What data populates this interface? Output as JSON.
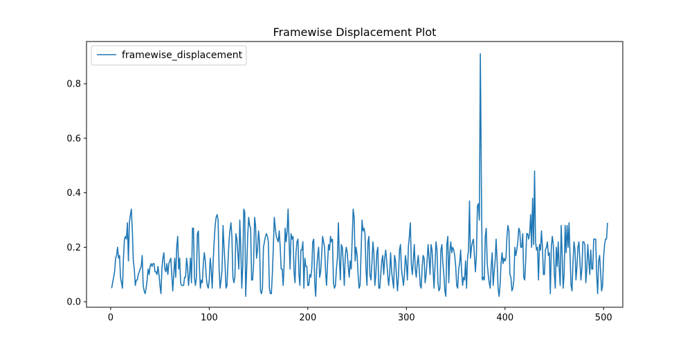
{
  "chart_data": {
    "type": "line",
    "title": "Framewise Displacement Plot",
    "xlabel": "",
    "ylabel": "",
    "xlim": [
      -24.5,
      519.5
    ],
    "ylim": [
      -0.02,
      0.955
    ],
    "xticks": [
      0,
      100,
      200,
      300,
      400,
      500
    ],
    "yticks": [
      0.0,
      0.2,
      0.4,
      0.6,
      0.8
    ],
    "xtick_labels": [
      "0",
      "100",
      "200",
      "300",
      "400",
      "500"
    ],
    "ytick_labels": [
      "0.0",
      "0.2",
      "0.4",
      "0.6",
      "0.8"
    ],
    "grid": false,
    "legend_position": "upper-left",
    "colors": {
      "series": "#1f77b4",
      "axes": "#000000",
      "background": "#ffffff"
    },
    "series": [
      {
        "name": "framewise_displacement",
        "x_start": 1,
        "x_step": 1,
        "values": [
          0.05,
          0.07,
          0.09,
          0.11,
          0.16,
          0.17,
          0.2,
          0.16,
          0.17,
          0.09,
          0.07,
          0.05,
          0.16,
          0.23,
          0.24,
          0.23,
          0.29,
          0.15,
          0.29,
          0.32,
          0.34,
          0.26,
          0.15,
          0.12,
          0.06,
          0.08,
          0.08,
          0.1,
          0.11,
          0.12,
          0.13,
          0.17,
          0.06,
          0.04,
          0.03,
          0.05,
          0.08,
          0.12,
          0.1,
          0.13,
          0.14,
          0.13,
          0.14,
          0.14,
          0.11,
          0.11,
          0.1,
          0.13,
          0.1,
          0.06,
          0.03,
          0.12,
          0.16,
          0.18,
          0.12,
          0.11,
          0.14,
          0.1,
          0.14,
          0.15,
          0.16,
          0.1,
          0.04,
          0.1,
          0.16,
          0.09,
          0.2,
          0.24,
          0.12,
          0.16,
          0.07,
          0.06,
          0.06,
          0.06,
          0.09,
          0.09,
          0.16,
          0.13,
          0.06,
          0.1,
          0.16,
          0.07,
          0.27,
          0.27,
          0.09,
          0.06,
          0.09,
          0.25,
          0.26,
          0.13,
          0.05,
          0.08,
          0.07,
          0.14,
          0.18,
          0.15,
          0.09,
          0.06,
          0.05,
          0.08,
          0.16,
          0.12,
          0.05,
          0.15,
          0.22,
          0.28,
          0.31,
          0.32,
          0.3,
          0.12,
          0.05,
          0.08,
          0.12,
          0.28,
          0.2,
          0.14,
          0.05,
          0.06,
          0.14,
          0.22,
          0.26,
          0.29,
          0.24,
          0.09,
          0.07,
          0.09,
          0.25,
          0.23,
          0.18,
          0.12,
          0.3,
          0.2,
          0.05,
          0.13,
          0.34,
          0.33,
          0.02,
          0.12,
          0.24,
          0.31,
          0.28,
          0.27,
          0.08,
          0.08,
          0.14,
          0.31,
          0.28,
          0.16,
          0.19,
          0.26,
          0.22,
          0.04,
          0.03,
          0.05,
          0.2,
          0.22,
          0.24,
          0.25,
          0.24,
          0.22,
          0.05,
          0.03,
          0.03,
          0.1,
          0.2,
          0.31,
          0.27,
          0.24,
          0.23,
          0.22,
          0.26,
          0.2,
          0.12,
          0.12,
          0.06,
          0.14,
          0.27,
          0.22,
          0.26,
          0.34,
          0.22,
          0.12,
          0.25,
          0.23,
          0.24,
          0.11,
          0.07,
          0.18,
          0.22,
          0.23,
          0.1,
          0.06,
          0.19,
          0.19,
          0.22,
          0.05,
          0.16,
          0.13,
          0.13,
          0.06,
          0.06,
          0.1,
          0.09,
          0.12,
          0.22,
          0.23,
          0.07,
          0.02,
          0.12,
          0.17,
          0.2,
          0.09,
          0.11,
          0.17,
          0.24,
          0.22,
          0.2,
          0.11,
          0.06,
          0.14,
          0.21,
          0.19,
          0.24,
          0.22,
          0.23,
          0.07,
          0.05,
          0.06,
          0.12,
          0.16,
          0.29,
          0.16,
          0.08,
          0.21,
          0.2,
          0.14,
          0.06,
          0.17,
          0.2,
          0.18,
          0.13,
          0.09,
          0.15,
          0.12,
          0.23,
          0.34,
          0.31,
          0.15,
          0.2,
          0.17,
          0.1,
          0.05,
          0.06,
          0.18,
          0.3,
          0.26,
          0.27,
          0.25,
          0.12,
          0.06,
          0.22,
          0.24,
          0.1,
          0.08,
          0.14,
          0.22,
          0.18,
          0.06,
          0.1,
          0.18,
          0.2,
          0.05,
          0.05,
          0.1,
          0.15,
          0.17,
          0.1,
          0.16,
          0.19,
          0.15,
          0.1,
          0.06,
          0.1,
          0.18,
          0.11,
          0.08,
          0.05,
          0.17,
          0.15,
          0.09,
          0.04,
          0.1,
          0.19,
          0.21,
          0.12,
          0.09,
          0.06,
          0.1,
          0.17,
          0.14,
          0.08,
          0.2,
          0.24,
          0.29,
          0.14,
          0.1,
          0.15,
          0.21,
          0.12,
          0.09,
          0.14,
          0.17,
          0.12,
          0.06,
          0.05,
          0.13,
          0.17,
          0.16,
          0.07,
          0.1,
          0.15,
          0.21,
          0.16,
          0.1,
          0.21,
          0.19,
          0.12,
          0.05,
          0.13,
          0.22,
          0.19,
          0.07,
          0.04,
          0.05,
          0.19,
          0.21,
          0.14,
          0.1,
          0.04,
          0.02,
          0.21,
          0.24,
          0.07,
          0.18,
          0.22,
          0.18,
          0.2,
          0.19,
          0.17,
          0.13,
          0.06,
          0.05,
          0.12,
          0.14,
          0.19,
          0.11,
          0.06,
          0.09,
          0.08,
          0.15,
          0.05,
          0.16,
          0.19,
          0.37,
          0.16,
          0.2,
          0.22,
          0.23,
          0.17,
          0.11,
          0.17,
          0.35,
          0.36,
          0.3,
          0.91,
          0.45,
          0.08,
          0.09,
          0.08,
          0.24,
          0.27,
          0.14,
          0.1,
          0.07,
          0.05,
          0.13,
          0.18,
          0.06,
          0.11,
          0.15,
          0.23,
          0.15,
          0.05,
          0.02,
          0.06,
          0.14,
          0.18,
          0.14,
          0.16,
          0.15,
          0.16,
          0.24,
          0.28,
          0.26,
          0.1,
          0.09,
          0.04,
          0.05,
          0.08,
          0.2,
          0.17,
          0.19,
          0.22,
          0.27,
          0.26,
          0.2,
          0.2,
          0.25,
          0.09,
          0.08,
          0.15,
          0.25,
          0.25,
          0.23,
          0.25,
          0.32,
          0.2,
          0.38,
          0.21,
          0.48,
          0.22,
          0.19,
          0.2,
          0.08,
          0.21,
          0.19,
          0.26,
          0.2,
          0.1,
          0.1,
          0.19,
          0.2,
          0.22,
          0.17,
          0.18,
          0.03,
          0.2,
          0.24,
          0.21,
          0.11,
          0.05,
          0.2,
          0.13,
          0.22,
          0.12,
          0.06,
          0.28,
          0.17,
          0.05,
          0.1,
          0.28,
          0.18,
          0.28,
          0.2,
          0.29,
          0.17,
          0.06,
          0.04,
          0.15,
          0.22,
          0.19,
          0.08,
          0.13,
          0.2,
          0.22,
          0.15,
          0.08,
          0.12,
          0.22,
          0.22,
          0.21,
          0.07,
          0.12,
          0.21,
          0.15,
          0.1,
          0.19,
          0.12,
          0.12,
          0.23,
          0.23,
          0.23,
          0.1,
          0.03,
          0.15,
          0.17,
          0.11,
          0.04,
          0.06,
          0.16,
          0.21,
          0.23,
          0.23,
          0.29
        ]
      }
    ]
  }
}
